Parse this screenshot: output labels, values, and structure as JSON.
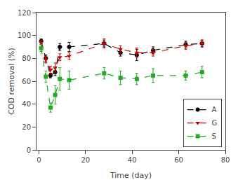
{
  "chart_data": {
    "type": "line",
    "xlabel": "Time (day)",
    "ylabel": "COD removal (%)",
    "xlim": [
      -1,
      80
    ],
    "ylim": [
      0,
      120
    ],
    "xticks": [
      0,
      20,
      40,
      60,
      80
    ],
    "yticks": [
      0,
      20,
      40,
      60,
      80,
      100,
      120
    ],
    "grid": false,
    "legend": "lower right",
    "line_style": "dashed",
    "series": [
      {
        "name": "A",
        "color": "#000000",
        "marker": "circle",
        "x": [
          1,
          3,
          5,
          7,
          9,
          13,
          28,
          35,
          42,
          49,
          63,
          70
        ],
        "values": [
          95,
          80,
          65,
          68,
          90,
          90,
          93,
          85,
          83,
          87,
          92,
          93
        ],
        "yerr": [
          2,
          3,
          2,
          3,
          3,
          4,
          3,
          3,
          5,
          3,
          3,
          3
        ]
      },
      {
        "name": "G",
        "color": "#cc0000",
        "marker": "triangle-down",
        "x": [
          1,
          3,
          5,
          7,
          9,
          13,
          28,
          35,
          42,
          49,
          63,
          70
        ],
        "values": [
          94,
          79,
          70,
          72,
          81,
          82,
          93,
          88,
          85,
          85,
          91,
          93
        ],
        "yerr": [
          2,
          3,
          3,
          4,
          3,
          3,
          4,
          3,
          4,
          3,
          3,
          3
        ]
      },
      {
        "name": "S",
        "color": "#22aa22",
        "marker": "square",
        "x": [
          1,
          3,
          5,
          7,
          9,
          13,
          28,
          35,
          42,
          49,
          63,
          70
        ],
        "values": [
          89,
          64,
          37,
          48,
          62,
          61,
          67,
          63,
          62,
          65,
          65,
          68
        ],
        "yerr": [
          3,
          5,
          4,
          8,
          10,
          8,
          5,
          6,
          5,
          6,
          4,
          5
        ]
      }
    ]
  }
}
